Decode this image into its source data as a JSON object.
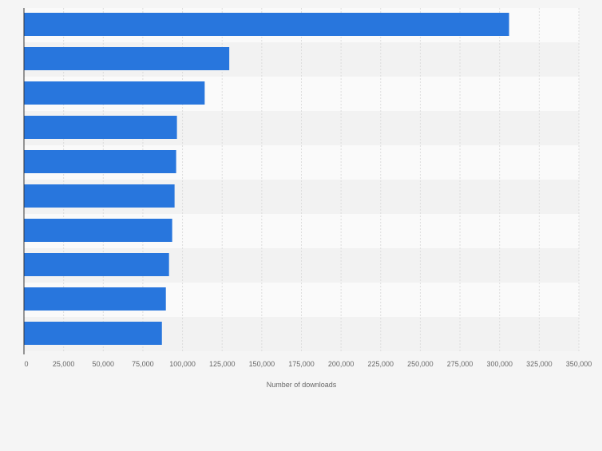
{
  "chart_data": {
    "type": "bar",
    "orientation": "horizontal",
    "categories": [
      "",
      "",
      "",
      "",
      "",
      "",
      "",
      "",
      "",
      ""
    ],
    "values": [
      306000,
      129500,
      114000,
      96500,
      96000,
      95000,
      93500,
      91500,
      89500,
      87000
    ],
    "xlabel": "Number of downloads",
    "ylabel": "",
    "xlim": [
      0,
      350000
    ],
    "xticks": [
      "0",
      "25,000",
      "50,000",
      "75,000",
      "100,000",
      "125,000",
      "150,000",
      "175,000",
      "200,000",
      "225,000",
      "250,000",
      "275,000",
      "300,000",
      "325,000",
      "350,000"
    ],
    "grid": true,
    "legend": "none",
    "colors": {
      "bar": "#2876dd",
      "band_light": "#fafafa",
      "band_dark": "#f2f2f2",
      "grid": "#dcdcdc",
      "axis": "#333333",
      "tick_text": "#666666"
    }
  }
}
